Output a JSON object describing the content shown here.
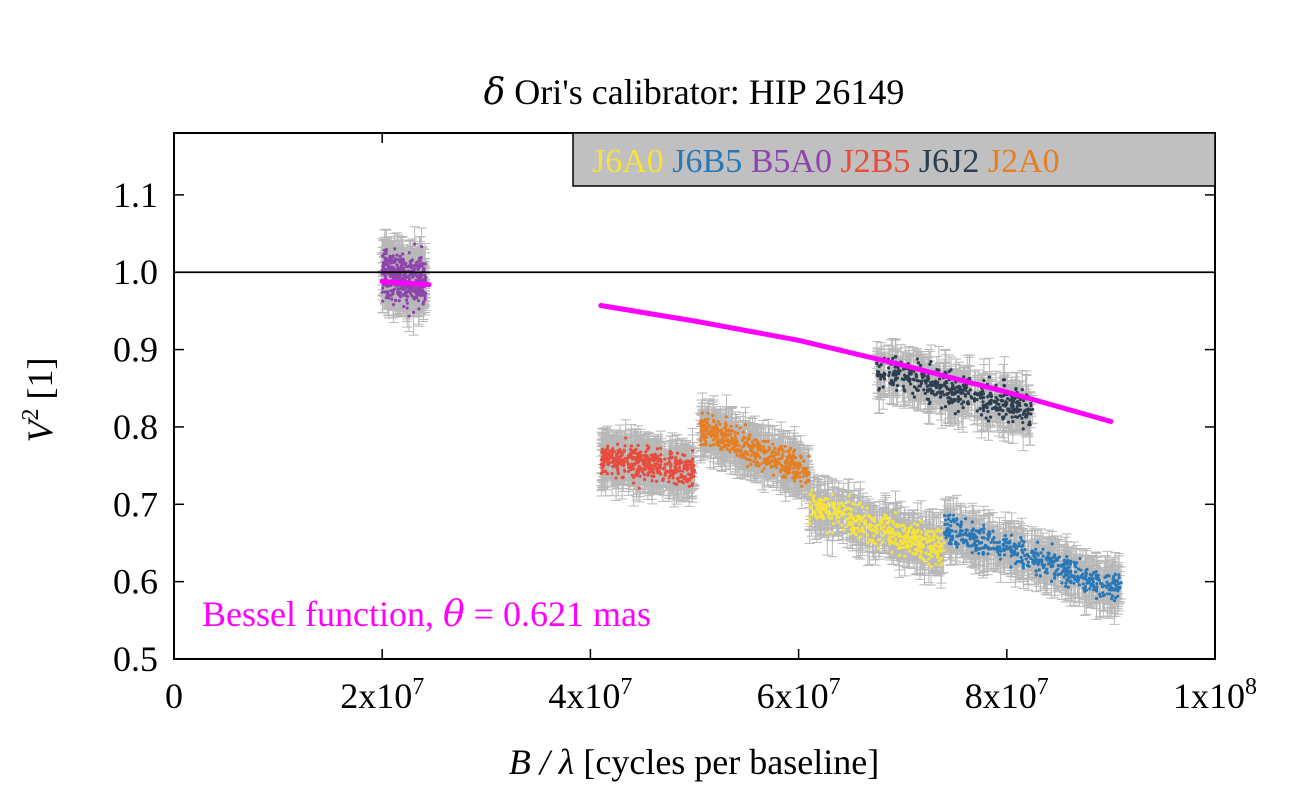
{
  "chart_data": {
    "type": "scatter",
    "title_prefix": "δ",
    "title_rest": " Ori's calibrator: HIP 26149",
    "xlabel_var": "B / λ",
    "xlabel_rest": " [cycles per baseline]",
    "ylabel_var": "V",
    "ylabel_sup": "2",
    "ylabel_rest": " [1]",
    "xlim": [
      0,
      100000000
    ],
    "ylim": [
      0.5,
      1.18
    ],
    "x_ticks": [
      {
        "value": 0,
        "label": "0"
      },
      {
        "value": 20000000,
        "base": "2x10",
        "exp": "7"
      },
      {
        "value": 40000000,
        "base": "4x10",
        "exp": "7"
      },
      {
        "value": 60000000,
        "base": "6x10",
        "exp": "7"
      },
      {
        "value": 80000000,
        "base": "8x10",
        "exp": "7"
      },
      {
        "value": 100000000,
        "base": "1x10",
        "exp": "8"
      }
    ],
    "y_ticks": [
      {
        "value": 0.5,
        "label": "0.5"
      },
      {
        "value": 0.6,
        "label": "0.6"
      },
      {
        "value": 0.7,
        "label": "0.7"
      },
      {
        "value": 0.8,
        "label": "0.8"
      },
      {
        "value": 0.9,
        "label": "0.9"
      },
      {
        "value": 1.0,
        "label": "1.0"
      },
      {
        "value": 1.1,
        "label": "1.1"
      }
    ],
    "reference_line": 1.0,
    "grid": false,
    "legend_position": "top-right",
    "legend_background": "#c0c0c0",
    "series": [
      {
        "name": "J6A0",
        "color": "#f5e33b",
        "x_range": [
          61000000,
          74000000
        ],
        "y_start": 0.7,
        "y_end": 0.64,
        "scatter": 0.022,
        "n": 420
      },
      {
        "name": "J6B5",
        "color": "#2878b8",
        "x_range": [
          74000000,
          91000000
        ],
        "y_start": 0.67,
        "y_end": 0.59,
        "scatter": 0.018,
        "n": 480
      },
      {
        "name": "B5A0",
        "color": "#8e44ad",
        "x_range": [
          20000000,
          24200000
        ],
        "y_start": 1.0,
        "y_end": 0.985,
        "scatter": 0.03,
        "n": 420
      },
      {
        "name": "J2B5",
        "color": "#e74c3c",
        "x_range": [
          41000000,
          50000000
        ],
        "y_start": 0.76,
        "y_end": 0.745,
        "scatter": 0.02,
        "n": 420
      },
      {
        "name": "J6J2",
        "color": "#2c3e50",
        "x_range": [
          67500000,
          82500000
        ],
        "y_start": 0.875,
        "y_end": 0.82,
        "scatter": 0.022,
        "n": 460
      },
      {
        "name": "J2A0",
        "color": "#e67e22",
        "x_range": [
          50500000,
          61000000
        ],
        "y_start": 0.8,
        "y_end": 0.74,
        "scatter": 0.02,
        "n": 420
      }
    ],
    "model_curve": {
      "color": "#ff00ff",
      "points": [
        {
          "x": 20000000,
          "y": 0.988
        },
        {
          "x": 24500000,
          "y": 0.984
        },
        {
          "x": 41000000,
          "y": 0.957
        },
        {
          "x": 50000000,
          "y": 0.937
        },
        {
          "x": 60000000,
          "y": 0.912
        },
        {
          "x": 70000000,
          "y": 0.88
        },
        {
          "x": 80000000,
          "y": 0.845
        },
        {
          "x": 90000000,
          "y": 0.807
        }
      ]
    },
    "annotation": {
      "text_prefix": "Bessel function, ",
      "symbol": "θ",
      "text_suffix": " = 0.621 mas",
      "color": "#ff00ff"
    }
  }
}
